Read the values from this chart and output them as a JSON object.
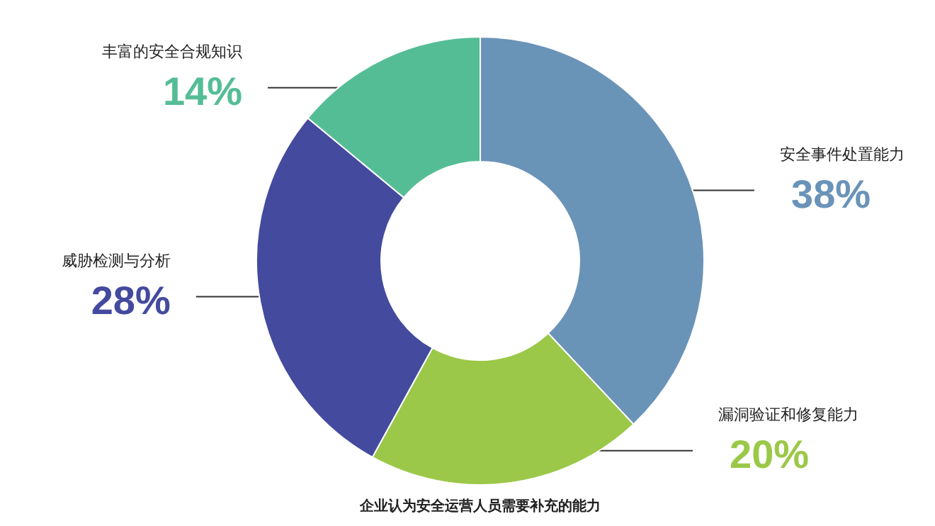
{
  "chart_data": {
    "type": "donut",
    "categories": [
      "安全事件处置能力",
      "漏洞验证和修复能力",
      "威胁检测与分析",
      "丰富的安全合规知识"
    ],
    "values": [
      38,
      20,
      28,
      14
    ],
    "colors": [
      "#6a93b8",
      "#9bc848",
      "#444a9e",
      "#55bd96"
    ],
    "value_labels": [
      "38%",
      "20%",
      "28%",
      "14%"
    ],
    "annotations": [
      "企业认为安全运营人员需要补充的能力"
    ]
  }
}
